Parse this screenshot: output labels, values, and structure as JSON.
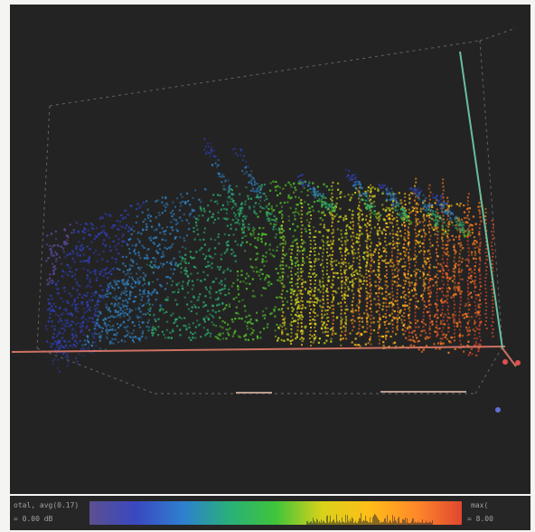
{
  "chart_data": {
    "type": "scatter",
    "title": "",
    "xlabel": "",
    "ylabel": "",
    "zlabel": "",
    "grid": false,
    "background": "#232323",
    "axis_box": "dashed",
    "colormap": [
      "#5a4a9a",
      "#2f3fb5",
      "#2f7fc0",
      "#2ca86b",
      "#4fbd2b",
      "#c8d21e",
      "#ffc01a",
      "#ff7a1f",
      "#e2482a"
    ],
    "series": [
      {
        "group": "blue-left-wing",
        "color": "#3d55c8"
      },
      {
        "group": "green-ridge",
        "color": "#4dbb3a"
      },
      {
        "group": "yellow-center",
        "color": "#f0c922"
      },
      {
        "group": "orange-right-block",
        "color": "#f08a2c"
      },
      {
        "group": "blue-upper-wisps",
        "color": "#3f5ad0"
      }
    ]
  },
  "colorbar": {
    "left_line1": "otal, avg(0.17)",
    "left_line2": "= 0.00 dB",
    "right_line1": "max(",
    "right_line2": "=  8.00",
    "gradient": [
      "#5b5090",
      "#3a48c0",
      "#2e7fd0",
      "#28b07a",
      "#3fc43a",
      "#d8d21a",
      "#ffbe18",
      "#ff8a2a",
      "#e0472f"
    ]
  },
  "axes_colors": {
    "x_axis": "#e07a6a",
    "y_axis": "#6fd0a8",
    "frame": "#9a9a9a"
  }
}
